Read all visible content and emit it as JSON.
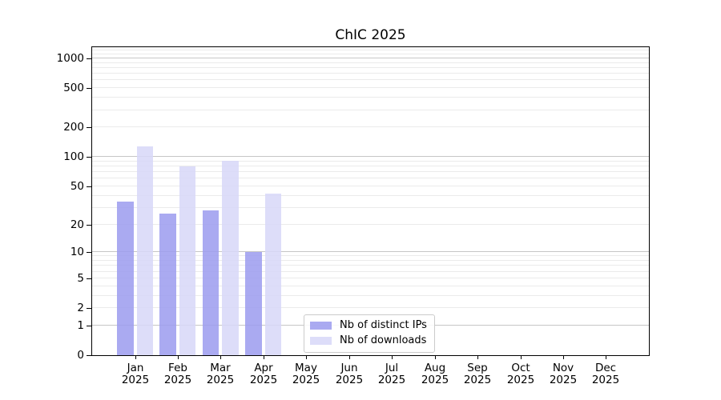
{
  "title": "ChIC 2025",
  "chart_data": {
    "type": "bar",
    "title": "ChIC 2025",
    "categories": [
      "Jan 2025",
      "Feb 2025",
      "Mar 2025",
      "Apr 2025",
      "May 2025",
      "Jun 2025",
      "Jul 2025",
      "Aug 2025",
      "Sep 2025",
      "Oct 2025",
      "Nov 2025",
      "Dec 2025"
    ],
    "series": [
      {
        "name": "Nb of distinct IPs",
        "color": "#9b9bef",
        "values": [
          35,
          26,
          28,
          10,
          0,
          0,
          0,
          0,
          0,
          0,
          0,
          0
        ]
      },
      {
        "name": "Nb of downloads",
        "color": "#d7d7f8",
        "values": [
          128,
          80,
          92,
          42,
          0,
          0,
          0,
          0,
          0,
          0,
          0,
          0
        ]
      }
    ],
    "xlabel": "",
    "ylabel": "",
    "yscale": "log1p",
    "yticks": [
      0,
      1,
      2,
      5,
      10,
      20,
      50,
      100,
      200,
      500,
      1000
    ],
    "ylim": [
      0,
      1300
    ],
    "grid": true,
    "legend_position": "inside lower right of plot"
  },
  "legend": {
    "items": [
      {
        "label": "Nb of distinct IPs",
        "color": "#9b9bef"
      },
      {
        "label": "Nb of downloads",
        "color": "#d7d7f8"
      }
    ]
  },
  "colors": {
    "major_grid": "#c6c6c6",
    "minor_grid": "#ebebeb",
    "axis": "#000000",
    "text": "#000000",
    "background": "#ffffff"
  }
}
